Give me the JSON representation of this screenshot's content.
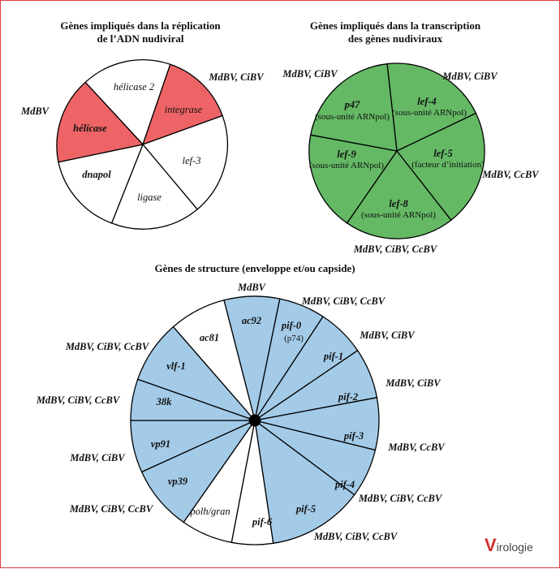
{
  "colors": {
    "red": "#ee6466",
    "green": "#65b965",
    "blue": "#a3cbe8",
    "white": "#ffffff",
    "border": "#e03a3a"
  },
  "replication": {
    "title_1": "Gènes impliqués dans la réplication",
    "title_2": "de l’ADN nudiviral",
    "segments": [
      {
        "gene": "hélicase 2",
        "fill": "white"
      },
      {
        "gene": "integrase",
        "fill": "red"
      },
      {
        "gene": "lef-3",
        "fill": "white"
      },
      {
        "gene": "ligase",
        "fill": "white"
      },
      {
        "gene": "dnapol",
        "fill": "white"
      },
      {
        "gene": "hélicase",
        "fill": "red"
      }
    ],
    "virus_labels": [
      "MdBV, CiBV",
      "MdBV"
    ]
  },
  "transcription": {
    "title_1": "Gènes impliqués dans la transcription",
    "title_2": "des gènes nudiviraux",
    "segments": [
      {
        "gene": "lef-4",
        "desc": "(sous-unité ARNpol)"
      },
      {
        "gene": "lef-5",
        "desc": "(facteur d’initiation)"
      },
      {
        "gene": "lef-8",
        "desc": "(sous-unité ARNpol)"
      },
      {
        "gene": "lef-9",
        "desc": "(sous-unité ARNpol)"
      },
      {
        "gene": "p47",
        "desc": "(sous-unité ARNpol)"
      }
    ],
    "virus_labels": [
      "MdBV, CiBV",
      "MdBV, CiBV",
      "MdBV, CcBV",
      "MdBV, CiBV, CcBV"
    ]
  },
  "structure": {
    "title": "Gènes de structure (enveloppe et/ou capside)",
    "segments": [
      {
        "gene": "ac92",
        "fill": "blue",
        "virus": "MdBV"
      },
      {
        "gene": "pif-0",
        "note": "(p74)",
        "fill": "blue",
        "virus": "MdBV, CiBV, CcBV"
      },
      {
        "gene": "pif-1",
        "fill": "blue",
        "virus": "MdBV, CiBV"
      },
      {
        "gene": "pif-2",
        "fill": "blue",
        "virus": "MdBV, CiBV"
      },
      {
        "gene": "pif-3",
        "fill": "blue",
        "virus": "MdBV, CcBV"
      },
      {
        "gene": "pif-4",
        "fill": "blue",
        "virus": "MdBV, CiBV, CcBV"
      },
      {
        "gene": "pif-5",
        "fill": "blue",
        "virus": "MdBV, CiBV, CcBV"
      },
      {
        "gene": "pif-6",
        "fill": "white",
        "virus": ""
      },
      {
        "gene": "polh/gran",
        "fill": "white",
        "virus": ""
      },
      {
        "gene": "vp39",
        "fill": "blue",
        "virus": "MdBV, CiBV, CcBV"
      },
      {
        "gene": "vp91",
        "fill": "blue",
        "virus": "MdBV, CiBV"
      },
      {
        "gene": "38k",
        "fill": "blue",
        "virus": "MdBV, CiBV, CcBV"
      },
      {
        "gene": "vlf-1",
        "fill": "blue",
        "virus": "MdBV, CiBV, CcBV"
      },
      {
        "gene": "ac81",
        "fill": "white",
        "virus": ""
      }
    ]
  },
  "logo": {
    "initial": "V",
    "rest": "irologie"
  }
}
